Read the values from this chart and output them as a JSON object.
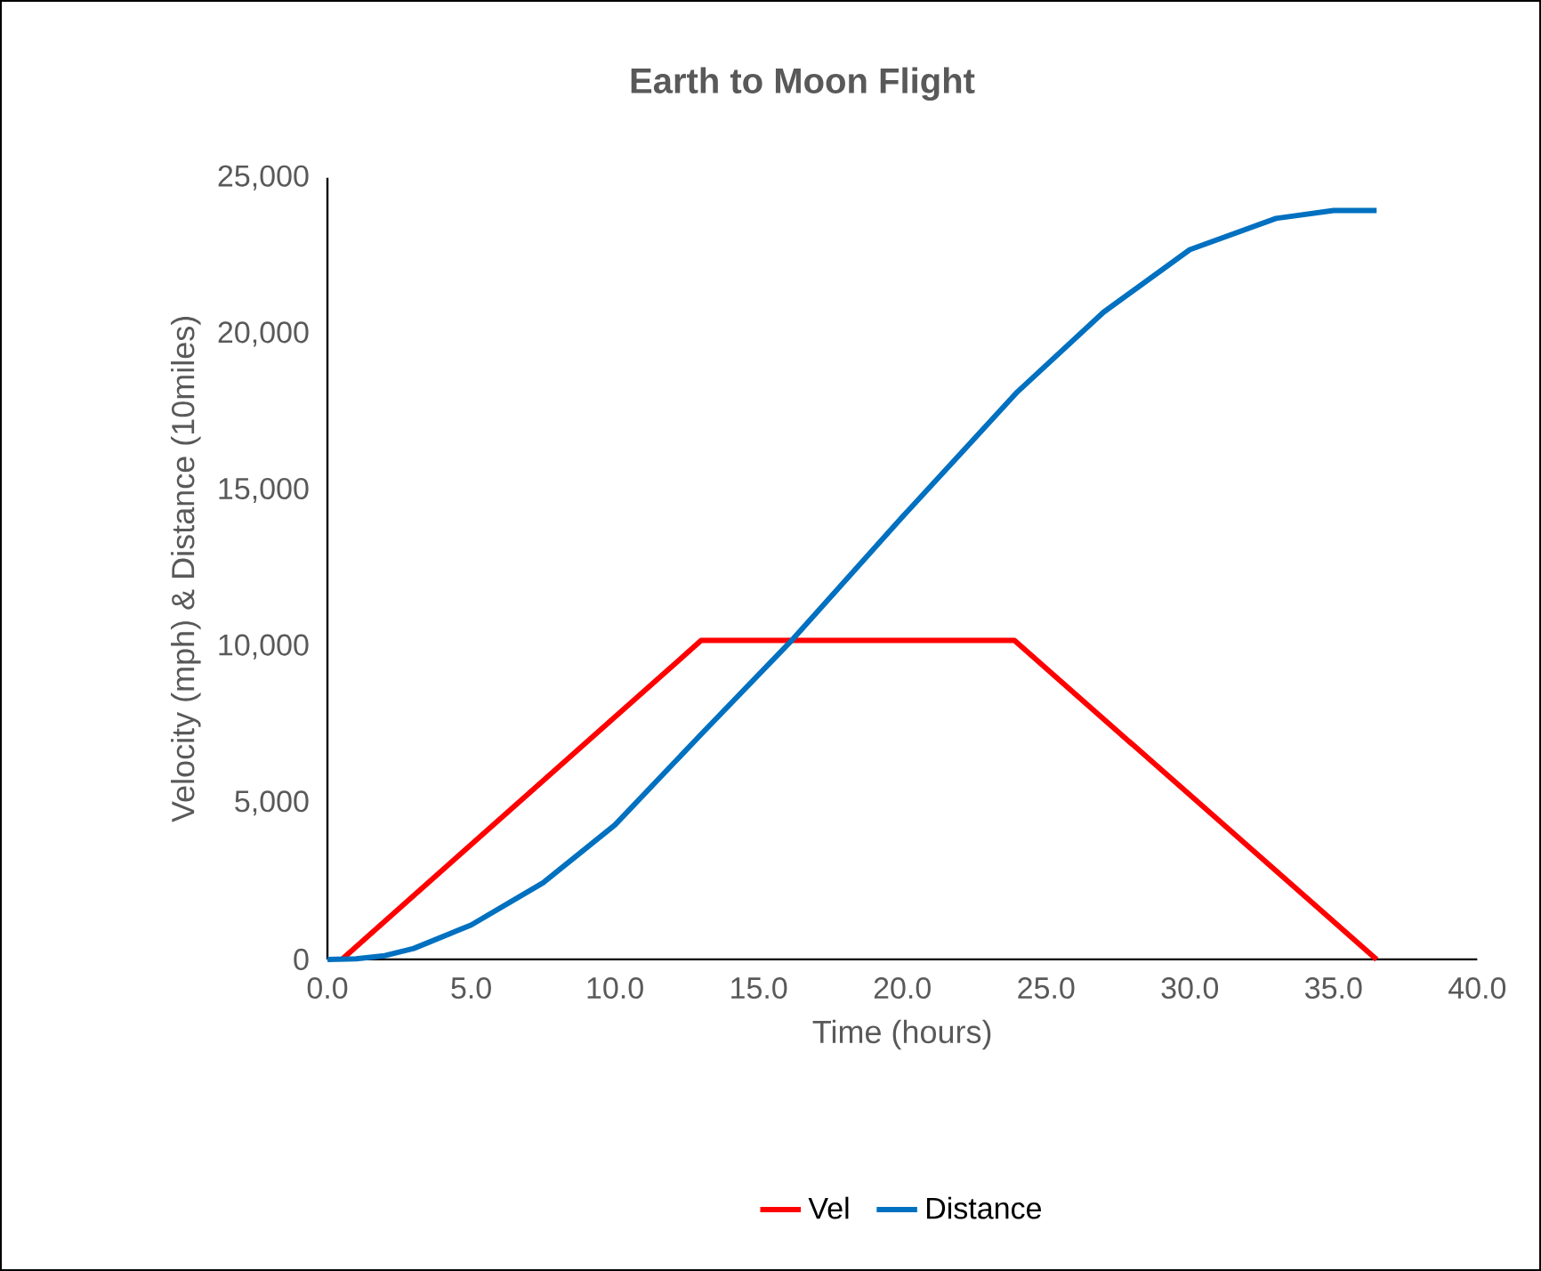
{
  "chart_data": {
    "type": "line",
    "title": "Earth to Moon Flight",
    "xlabel": "Time (hours)",
    "ylabel": "Velocity (mph) & Distance (10miles)",
    "xlim": [
      0,
      40
    ],
    "ylim": [
      0,
      25000
    ],
    "xticks": [
      {
        "value": 0,
        "label": "0.0"
      },
      {
        "value": 5,
        "label": "5.0"
      },
      {
        "value": 10,
        "label": "10.0"
      },
      {
        "value": 15,
        "label": "15.0"
      },
      {
        "value": 20,
        "label": "20.0"
      },
      {
        "value": 25,
        "label": "25.0"
      },
      {
        "value": 30,
        "label": "30.0"
      },
      {
        "value": 35,
        "label": "35.0"
      },
      {
        "value": 40,
        "label": "40.0"
      }
    ],
    "yticks": [
      0,
      {
        "value": 5000,
        "label": "5,000"
      },
      {
        "value": 10000,
        "label": "10,000"
      },
      {
        "value": 15000,
        "label": "15,000"
      },
      {
        "value": 20000,
        "label": "20,000"
      },
      {
        "value": 25000,
        "label": "25,000"
      }
    ],
    "legend": "bottom",
    "grid": false,
    "marker": "none",
    "line_style": "solid",
    "series": [
      {
        "name": "Vel",
        "color": "#ff0000",
        "x": [
          0.5,
          13.0,
          23.9,
          36.5
        ],
        "values": [
          0,
          10200,
          10200,
          0
        ]
      },
      {
        "name": "Distance",
        "color": "#0070c0",
        "x": [
          0,
          1,
          2,
          3,
          5,
          7.5,
          10,
          13,
          16.2,
          20,
          24,
          27,
          30,
          33,
          35,
          36.5
        ],
        "values": [
          0,
          20,
          120,
          350,
          1100,
          2450,
          4300,
          7200,
          10250,
          14150,
          18150,
          20700,
          22700,
          23700,
          23950,
          23950
        ]
      }
    ]
  }
}
